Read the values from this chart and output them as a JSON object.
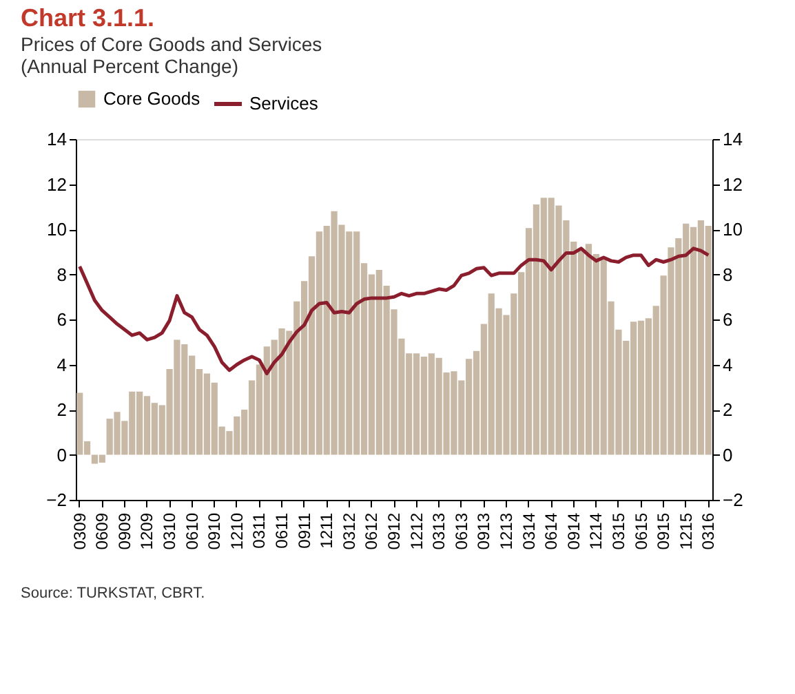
{
  "chart_data": {
    "type": "bar",
    "title": "Chart 3.1.1.",
    "subtitle": "Prices of Core Goods and Services\n(Annual Percent Change)",
    "categories": [
      "0309",
      null,
      null,
      "0609",
      null,
      null,
      "0909",
      null,
      null,
      "1209",
      null,
      null,
      "0310",
      null,
      null,
      "0610",
      null,
      null,
      "0910",
      null,
      null,
      "1210",
      null,
      null,
      "0311",
      null,
      null,
      "0611",
      null,
      null,
      "0911",
      null,
      null,
      "1211",
      null,
      null,
      "0312",
      null,
      null,
      "0612",
      null,
      null,
      "0912",
      null,
      null,
      "1212",
      null,
      null,
      "0313",
      null,
      null,
      "0613",
      null,
      null,
      "0913",
      null,
      null,
      "1213",
      null,
      null,
      "0314",
      null,
      null,
      "0614",
      null,
      null,
      "0914",
      null,
      null,
      "1214",
      null,
      null,
      "0315",
      null,
      null,
      "0615",
      null,
      null,
      "0915",
      null,
      null,
      "1215",
      null,
      null,
      "0316"
    ],
    "series": [
      {
        "name": "Core Goods",
        "color": "#c8b9a6",
        "values": [
          2.75,
          0.6,
          -0.4,
          -0.35,
          1.6,
          1.9,
          1.5,
          2.8,
          2.8,
          2.6,
          2.3,
          2.2,
          3.8,
          5.1,
          4.9,
          4.4,
          3.8,
          3.6,
          3.2,
          1.25,
          1.05,
          1.7,
          2.0,
          3.3,
          4.0,
          4.8,
          5.1,
          5.6,
          5.5,
          6.8,
          7.7,
          8.8,
          9.9,
          10.15,
          10.8,
          10.2,
          9.9,
          9.9,
          8.5,
          8.0,
          8.2,
          7.5,
          6.45,
          5.15,
          4.5,
          4.5,
          4.35,
          4.5,
          4.3,
          3.65,
          3.7,
          3.3,
          4.25,
          4.6,
          5.8,
          7.15,
          6.5,
          6.2,
          7.15,
          8.1,
          10.05,
          11.1,
          11.4,
          11.4,
          11.05,
          10.4,
          9.45,
          9.15,
          9.35,
          8.9,
          8.7,
          6.8,
          5.55,
          5.05,
          5.9,
          5.95,
          6.05,
          6.6,
          7.95,
          9.2,
          9.6,
          10.25,
          10.1,
          10.4,
          10.15
        ]
      },
      {
        "name": "Services",
        "type": "line",
        "color": "#8b1e2d",
        "values": [
          8.35,
          7.6,
          6.85,
          6.4,
          6.1,
          5.8,
          5.55,
          5.3,
          5.4,
          5.1,
          5.2,
          5.4,
          5.95,
          7.05,
          6.3,
          6.1,
          5.55,
          5.3,
          4.8,
          4.1,
          3.75,
          4.0,
          4.2,
          4.35,
          4.2,
          3.6,
          4.1,
          4.45,
          5.0,
          5.45,
          5.75,
          6.4,
          6.7,
          6.75,
          6.3,
          6.35,
          6.3,
          6.7,
          6.9,
          6.95,
          6.95,
          6.95,
          7.0,
          7.15,
          7.05,
          7.15,
          7.15,
          7.25,
          7.35,
          7.3,
          7.5,
          7.95,
          8.05,
          8.25,
          8.3,
          7.95,
          8.05,
          8.05,
          8.05,
          8.4,
          8.65,
          8.65,
          8.6,
          8.2,
          8.6,
          8.95,
          8.95,
          9.15,
          8.85,
          8.6,
          8.75,
          8.6,
          8.55,
          8.75,
          8.85,
          8.85,
          8.4,
          8.65,
          8.55,
          8.65,
          8.8,
          8.85,
          9.15,
          9.05,
          8.85
        ]
      }
    ],
    "ylim": [
      -2,
      14
    ],
    "yticks": [
      -2,
      0,
      2,
      4,
      6,
      8,
      10,
      12,
      14
    ],
    "y2lim": [
      -2,
      14
    ],
    "y2ticks": [
      -2,
      0,
      2,
      4,
      6,
      8,
      10,
      12,
      14
    ],
    "grid": false,
    "legend": "top",
    "line_style": "solid",
    "marker": "none",
    "annotations": [
      "Source: TURKSTAT, CBRT."
    ]
  }
}
